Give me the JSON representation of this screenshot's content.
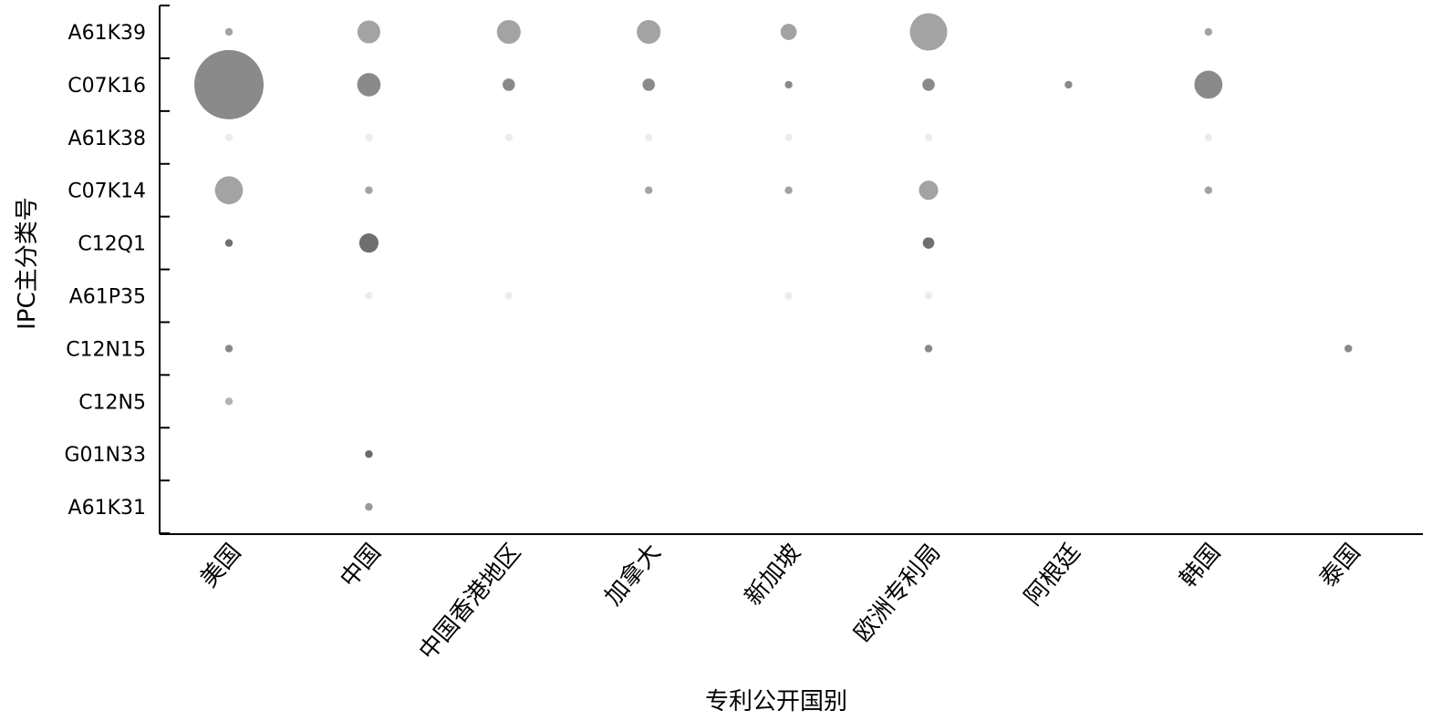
{
  "chart_data": {
    "type": "scatter",
    "subtype": "bubble",
    "xlabel": "专利公开国别",
    "ylabel": "IPC主分类号",
    "x_categories": [
      "美国",
      "中国",
      "中国香港地区",
      "加拿大",
      "新加坡",
      "欧洲专利局",
      "阿根廷",
      "韩国",
      "泰国"
    ],
    "y_categories": [
      "A61K39",
      "C07K16",
      "A61K38",
      "C07K14",
      "C12Q1",
      "A61P35",
      "C12N15",
      "C12N5",
      "G01N33",
      "A61K31"
    ],
    "colors": {
      "A61K39": "#a3a3a3",
      "C07K16": "#8a8a8a",
      "A61K38": "#ececec",
      "C07K14": "#a3a3a3",
      "C12Q1": "#6f6f6f",
      "A61P35": "#ececec",
      "C12N15": "#8a8a8a",
      "C12N5": "#b3b3b3",
      "G01N33": "#6a6a6a",
      "A61K31": "#9a9a9a"
    },
    "points": [
      {
        "x": "美国",
        "y": "A61K39",
        "value": 2
      },
      {
        "x": "中国",
        "y": "A61K39",
        "value": 24
      },
      {
        "x": "中国香港地区",
        "y": "A61K39",
        "value": 26
      },
      {
        "x": "加拿大",
        "y": "A61K39",
        "value": 26
      },
      {
        "x": "新加坡",
        "y": "A61K39",
        "value": 12
      },
      {
        "x": "欧洲专利局",
        "y": "A61K39",
        "value": 64
      },
      {
        "x": "韩国",
        "y": "A61K39",
        "value": 2
      },
      {
        "x": "美国",
        "y": "C07K16",
        "value": 220
      },
      {
        "x": "中国",
        "y": "C07K16",
        "value": 25
      },
      {
        "x": "中国香港地区",
        "y": "C07K16",
        "value": 7
      },
      {
        "x": "加拿大",
        "y": "C07K16",
        "value": 7
      },
      {
        "x": "新加坡",
        "y": "C07K16",
        "value": 2
      },
      {
        "x": "欧洲专利局",
        "y": "C07K16",
        "value": 7
      },
      {
        "x": "阿根廷",
        "y": "C07K16",
        "value": 2
      },
      {
        "x": "韩国",
        "y": "C07K16",
        "value": 36
      },
      {
        "x": "美国",
        "y": "A61K38",
        "value": 2
      },
      {
        "x": "中国",
        "y": "A61K38",
        "value": 2
      },
      {
        "x": "中国香港地区",
        "y": "A61K38",
        "value": 2
      },
      {
        "x": "加拿大",
        "y": "A61K38",
        "value": 2
      },
      {
        "x": "新加坡",
        "y": "A61K38",
        "value": 2
      },
      {
        "x": "欧洲专利局",
        "y": "A61K38",
        "value": 2
      },
      {
        "x": "韩国",
        "y": "A61K38",
        "value": 2
      },
      {
        "x": "美国",
        "y": "C07K14",
        "value": 36
      },
      {
        "x": "中国",
        "y": "C07K14",
        "value": 2
      },
      {
        "x": "加拿大",
        "y": "C07K14",
        "value": 2
      },
      {
        "x": "新加坡",
        "y": "C07K14",
        "value": 2
      },
      {
        "x": "欧洲专利局",
        "y": "C07K14",
        "value": 17
      },
      {
        "x": "韩国",
        "y": "C07K14",
        "value": 2
      },
      {
        "x": "美国",
        "y": "C12Q1",
        "value": 2
      },
      {
        "x": "中国",
        "y": "C12Q1",
        "value": 17
      },
      {
        "x": "欧洲专利局",
        "y": "C12Q1",
        "value": 6
      },
      {
        "x": "中国",
        "y": "A61P35",
        "value": 2
      },
      {
        "x": "中国香港地区",
        "y": "A61P35",
        "value": 2
      },
      {
        "x": "新加坡",
        "y": "A61P35",
        "value": 2
      },
      {
        "x": "欧洲专利局",
        "y": "A61P35",
        "value": 2
      },
      {
        "x": "美国",
        "y": "C12N15",
        "value": 2
      },
      {
        "x": "欧洲专利局",
        "y": "C12N15",
        "value": 2
      },
      {
        "x": "泰国",
        "y": "C12N15",
        "value": 2
      },
      {
        "x": "美国",
        "y": "C12N5",
        "value": 2
      },
      {
        "x": "中国",
        "y": "G01N33",
        "value": 2
      },
      {
        "x": "中国",
        "y": "A61K31",
        "value": 2
      }
    ]
  }
}
